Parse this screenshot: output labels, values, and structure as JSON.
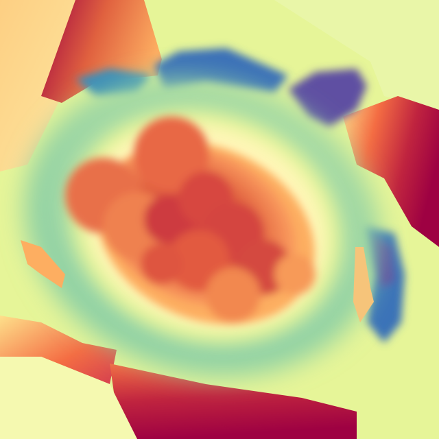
{
  "image": {
    "kind": "false-color depth / height map",
    "colormap": "spectral",
    "palette": {
      "deep_red": "#9e0142",
      "red": "#d53e4f",
      "orange_red": "#e0613f",
      "orange": "#f46d43",
      "light_orange": "#fdae61",
      "peach": "#fee08b",
      "cream": "#fffcc0",
      "pale_yellow": "#e6f598",
      "light_green": "#abdda4",
      "teal": "#66c2a5",
      "blue": "#3288bd",
      "indigo": "#5e4fa2"
    },
    "regions": [
      "central-warm-blob",
      "inner-cream-ring",
      "green-ring",
      "blue-gaps",
      "outer-panels"
    ]
  }
}
